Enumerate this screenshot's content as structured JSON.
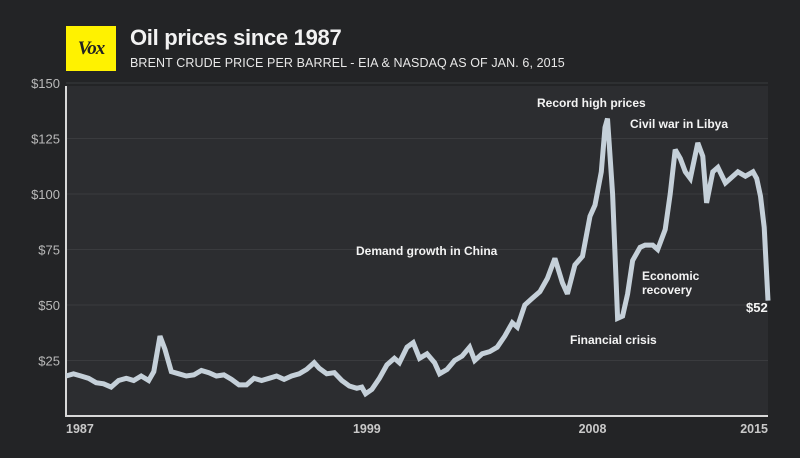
{
  "header": {
    "logo_text": "Vox",
    "title": "Oil prices since 1987",
    "subtitle": "BRENT CRUDE PRICE PER BARREL - EIA & NASDAQ AS OF JAN. 6, 2015"
  },
  "colors": {
    "background": "#232426",
    "plot_background": "#2c2d30",
    "line": "#c5d0d9",
    "logo": "#fff200",
    "axis": "#d8d8d8",
    "grid": "#3a3b3e"
  },
  "chart_data": {
    "type": "line",
    "title": "Oil prices since 1987",
    "subtitle": "BRENT CRUDE PRICE PER BARREL - EIA & NASDAQ AS OF JAN. 6, 2015",
    "xlabel": "",
    "ylabel": "",
    "xlim": [
      1987,
      2015
    ],
    "ylim": [
      0,
      150
    ],
    "grid": true,
    "yticks": [
      {
        "value": 25,
        "label": "$25"
      },
      {
        "value": 50,
        "label": "$50"
      },
      {
        "value": 75,
        "label": "$75"
      },
      {
        "value": 100,
        "label": "$100"
      },
      {
        "value": 125,
        "label": "$125"
      },
      {
        "value": 150,
        "label": "$150"
      }
    ],
    "xticks": [
      {
        "value": 1987,
        "label": "1987"
      },
      {
        "value": 1999,
        "label": "1999"
      },
      {
        "value": 2008,
        "label": "2008"
      },
      {
        "value": 2015,
        "label": "2015"
      }
    ],
    "series": [
      {
        "name": "Brent crude price per barrel (USD)",
        "points": [
          [
            1987.0,
            18
          ],
          [
            1987.3,
            19
          ],
          [
            1987.6,
            18
          ],
          [
            1987.9,
            17
          ],
          [
            1988.2,
            15
          ],
          [
            1988.5,
            14.5
          ],
          [
            1988.8,
            13
          ],
          [
            1989.1,
            16
          ],
          [
            1989.4,
            17
          ],
          [
            1989.7,
            16
          ],
          [
            1990.0,
            18
          ],
          [
            1990.3,
            16
          ],
          [
            1990.5,
            20
          ],
          [
            1990.75,
            36
          ],
          [
            1990.95,
            30
          ],
          [
            1991.2,
            20
          ],
          [
            1991.5,
            19
          ],
          [
            1991.8,
            18
          ],
          [
            1992.1,
            18.5
          ],
          [
            1992.4,
            20.5
          ],
          [
            1992.7,
            19.5
          ],
          [
            1993.0,
            18
          ],
          [
            1993.3,
            18.5
          ],
          [
            1993.6,
            16.5
          ],
          [
            1993.9,
            14
          ],
          [
            1994.2,
            14
          ],
          [
            1994.5,
            17
          ],
          [
            1994.8,
            16
          ],
          [
            1995.1,
            17
          ],
          [
            1995.4,
            18
          ],
          [
            1995.7,
            16.5
          ],
          [
            1996.0,
            18
          ],
          [
            1996.3,
            19
          ],
          [
            1996.6,
            21
          ],
          [
            1996.9,
            24
          ],
          [
            1997.1,
            21.5
          ],
          [
            1997.4,
            19
          ],
          [
            1997.7,
            19.5
          ],
          [
            1998.0,
            16
          ],
          [
            1998.3,
            13.5
          ],
          [
            1998.6,
            12.5
          ],
          [
            1998.8,
            13
          ],
          [
            1998.95,
            10
          ],
          [
            1999.2,
            12
          ],
          [
            1999.5,
            17
          ],
          [
            1999.8,
            23
          ],
          [
            2000.1,
            26
          ],
          [
            2000.3,
            24
          ],
          [
            2000.6,
            31
          ],
          [
            2000.85,
            33
          ],
          [
            2001.1,
            26
          ],
          [
            2001.4,
            28
          ],
          [
            2001.7,
            24
          ],
          [
            2001.9,
            19
          ],
          [
            2002.2,
            21
          ],
          [
            2002.5,
            25
          ],
          [
            2002.8,
            27
          ],
          [
            2003.1,
            31
          ],
          [
            2003.3,
            25
          ],
          [
            2003.6,
            28
          ],
          [
            2003.9,
            29
          ],
          [
            2004.2,
            31
          ],
          [
            2004.5,
            36
          ],
          [
            2004.8,
            42
          ],
          [
            2005.0,
            40
          ],
          [
            2005.3,
            50
          ],
          [
            2005.6,
            53
          ],
          [
            2005.9,
            56
          ],
          [
            2006.2,
            62
          ],
          [
            2006.5,
            71
          ],
          [
            2006.8,
            60
          ],
          [
            2007.0,
            55
          ],
          [
            2007.3,
            68
          ],
          [
            2007.6,
            72
          ],
          [
            2007.9,
            90
          ],
          [
            2008.1,
            95
          ],
          [
            2008.35,
            110
          ],
          [
            2008.5,
            130
          ],
          [
            2008.6,
            134
          ],
          [
            2008.8,
            100
          ],
          [
            2009.0,
            44
          ],
          [
            2009.2,
            45
          ],
          [
            2009.4,
            55
          ],
          [
            2009.6,
            70
          ],
          [
            2009.9,
            76
          ],
          [
            2010.1,
            77
          ],
          [
            2010.4,
            77
          ],
          [
            2010.6,
            75
          ],
          [
            2010.9,
            84
          ],
          [
            2011.1,
            100
          ],
          [
            2011.3,
            120
          ],
          [
            2011.5,
            116
          ],
          [
            2011.7,
            110
          ],
          [
            2011.9,
            107
          ],
          [
            2012.2,
            123
          ],
          [
            2012.4,
            117
          ],
          [
            2012.55,
            96
          ],
          [
            2012.8,
            110
          ],
          [
            2013.0,
            112
          ],
          [
            2013.3,
            105
          ],
          [
            2013.5,
            107
          ],
          [
            2013.8,
            110
          ],
          [
            2014.1,
            108
          ],
          [
            2014.4,
            110
          ],
          [
            2014.55,
            107
          ],
          [
            2014.7,
            99
          ],
          [
            2014.85,
            85
          ],
          [
            2015.0,
            52
          ]
        ]
      }
    ],
    "annotations": [
      {
        "text": "Record high prices",
        "x": 2008.6,
        "y": 134
      },
      {
        "text": "Civil war in Libya",
        "x": 2011.3,
        "y": 120
      },
      {
        "text": "Demand growth in China",
        "x": 2004.5,
        "y": 60
      },
      {
        "text": "Economic recovery",
        "x": 2010.5,
        "y": 60
      },
      {
        "text": "Financial crisis",
        "x": 2009.0,
        "y": 44
      },
      {
        "text": "$52",
        "x": 2015.0,
        "y": 52
      }
    ]
  }
}
